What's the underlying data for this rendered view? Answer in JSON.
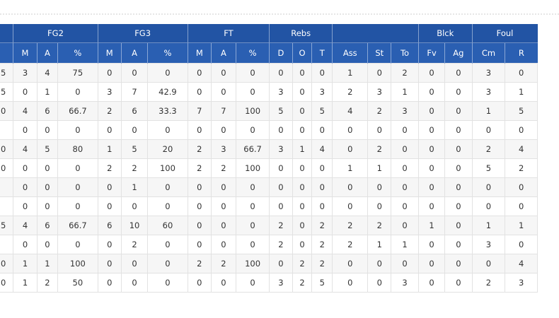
{
  "table": {
    "groups": [
      null,
      "FG2",
      "FG3",
      "FT",
      "Rebs",
      null,
      "Blck",
      "Foul"
    ],
    "columns": [
      null,
      "M",
      "A",
      "%",
      "M",
      "A",
      "%",
      "M",
      "A",
      "%",
      "D",
      "O",
      "T",
      "Ass",
      "St",
      "To",
      "Fv",
      "Ag",
      "Cm",
      "R"
    ],
    "rows": [
      [
        "5",
        "3",
        "4",
        "75",
        "0",
        "0",
        "0",
        "0",
        "0",
        "0",
        "0",
        "0",
        "0",
        "1",
        "0",
        "2",
        "0",
        "0",
        "3",
        "0"
      ],
      [
        "5",
        "0",
        "1",
        "0",
        "3",
        "7",
        "42.9",
        "0",
        "0",
        "0",
        "3",
        "0",
        "3",
        "2",
        "3",
        "1",
        "0",
        "0",
        "3",
        "1"
      ],
      [
        "0",
        "4",
        "6",
        "66.7",
        "2",
        "6",
        "33.3",
        "7",
        "7",
        "100",
        "5",
        "0",
        "5",
        "4",
        "2",
        "3",
        "0",
        "0",
        "1",
        "5"
      ],
      [
        null,
        "0",
        "0",
        "0",
        "0",
        "0",
        "0",
        "0",
        "0",
        "0",
        "0",
        "0",
        "0",
        "0",
        "0",
        "0",
        "0",
        "0",
        "0",
        "0"
      ],
      [
        "0",
        "4",
        "5",
        "80",
        "1",
        "5",
        "20",
        "2",
        "3",
        "66.7",
        "3",
        "1",
        "4",
        "0",
        "2",
        "0",
        "0",
        "0",
        "2",
        "4"
      ],
      [
        "0",
        "0",
        "0",
        "0",
        "2",
        "2",
        "100",
        "2",
        "2",
        "100",
        "0",
        "0",
        "0",
        "1",
        "1",
        "0",
        "0",
        "0",
        "5",
        "2"
      ],
      [
        null,
        "0",
        "0",
        "0",
        "0",
        "1",
        "0",
        "0",
        "0",
        "0",
        "0",
        "0",
        "0",
        "0",
        "0",
        "0",
        "0",
        "0",
        "0",
        "0"
      ],
      [
        null,
        "0",
        "0",
        "0",
        "0",
        "0",
        "0",
        "0",
        "0",
        "0",
        "0",
        "0",
        "0",
        "0",
        "0",
        "0",
        "0",
        "0",
        "0",
        "0"
      ],
      [
        "5",
        "4",
        "6",
        "66.7",
        "6",
        "10",
        "60",
        "0",
        "0",
        "0",
        "2",
        "0",
        "2",
        "2",
        "2",
        "0",
        "1",
        "0",
        "1",
        "1"
      ],
      [
        null,
        "0",
        "0",
        "0",
        "0",
        "2",
        "0",
        "0",
        "0",
        "0",
        "2",
        "0",
        "2",
        "2",
        "1",
        "1",
        "0",
        "0",
        "3",
        "0"
      ],
      [
        "0",
        "1",
        "1",
        "100",
        "0",
        "0",
        "0",
        "2",
        "2",
        "100",
        "0",
        "2",
        "2",
        "0",
        "0",
        "0",
        "0",
        "0",
        "0",
        "4"
      ],
      [
        "0",
        "1",
        "2",
        "50",
        "0",
        "0",
        "0",
        "0",
        "0",
        "0",
        "3",
        "2",
        "5",
        "0",
        "0",
        "3",
        "0",
        "0",
        "2",
        "3"
      ]
    ]
  }
}
